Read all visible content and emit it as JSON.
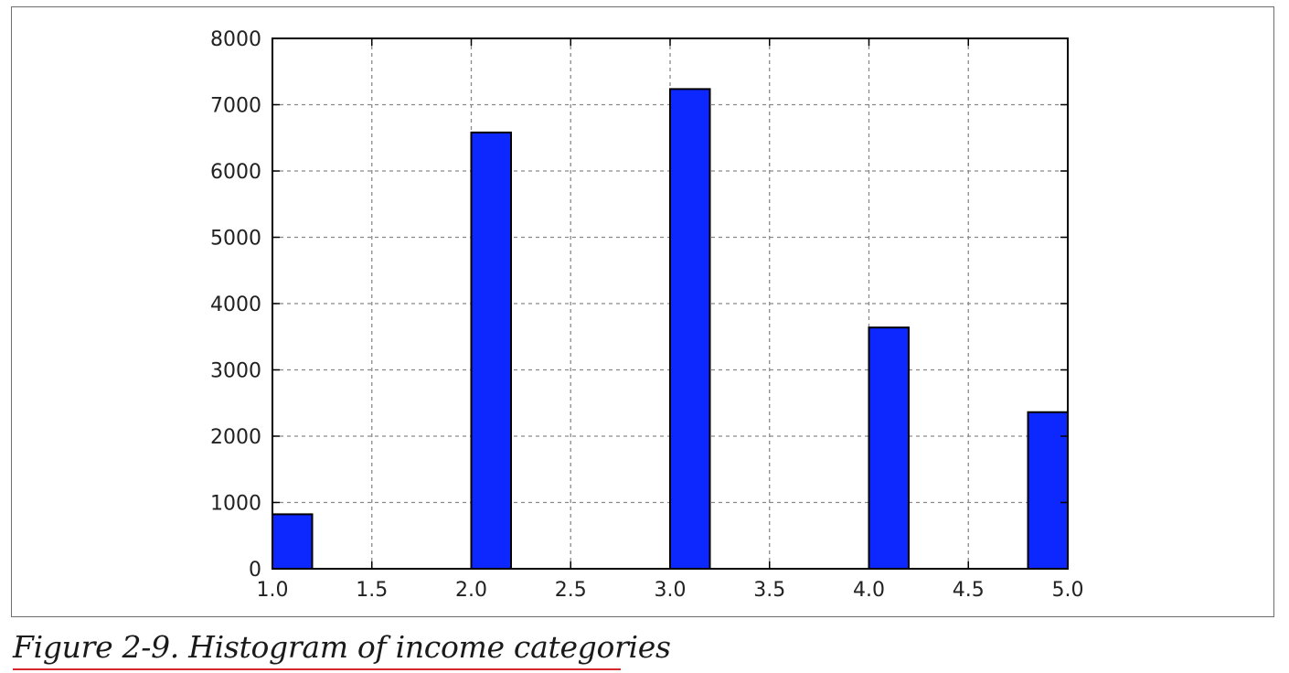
{
  "caption": "Figure 2-9. Histogram of income categories",
  "chart_data": {
    "type": "bar",
    "title": "",
    "xlabel": "",
    "ylabel": "",
    "xlim": [
      1.0,
      5.0
    ],
    "ylim": [
      0,
      8000
    ],
    "grid": true,
    "xticks": [
      "1.0",
      "1.5",
      "2.0",
      "2.5",
      "3.0",
      "3.5",
      "4.0",
      "4.5",
      "5.0"
    ],
    "yticks": [
      "0",
      "1000",
      "2000",
      "3000",
      "4000",
      "5000",
      "6000",
      "7000",
      "8000"
    ],
    "bins": [
      {
        "start": 1.0,
        "end": 1.2,
        "value": 822
      },
      {
        "start": 2.0,
        "end": 2.2,
        "value": 6581
      },
      {
        "start": 3.0,
        "end": 3.2,
        "value": 7236
      },
      {
        "start": 4.0,
        "end": 4.2,
        "value": 3639
      },
      {
        "start": 4.8,
        "end": 5.0,
        "value": 2362
      }
    ],
    "bar_color": "#0d27ff",
    "edge_color": "#000000"
  }
}
